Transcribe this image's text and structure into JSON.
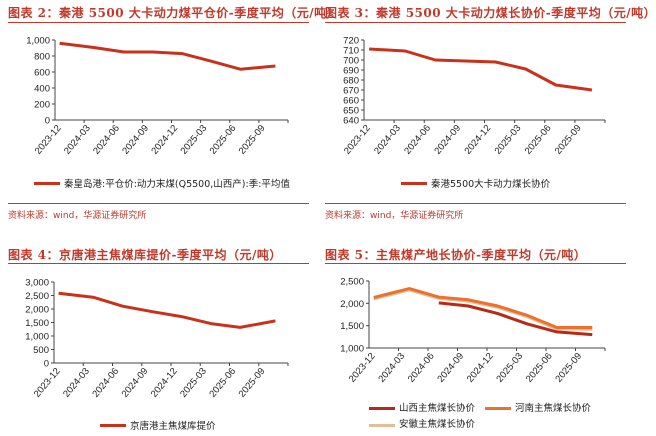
{
  "source_text": "资料来源：wind，华源证券研究所",
  "chart_data": [
    {
      "type": "line",
      "title": "图表 2：秦港 5500 大卡动力煤平仓价-季度平均（元/吨）",
      "categories": [
        "2023-12",
        "2024-03",
        "2024-06",
        "2024-09",
        "2024-12",
        "2025-03",
        "2025-06",
        "2025-09"
      ],
      "yticks": [
        "0",
        "200",
        "400",
        "600",
        "800",
        "1,000"
      ],
      "ylim": [
        0,
        1000
      ],
      "legend_position": "bottom",
      "series": [
        {
          "name": "秦皇岛港:平仓价:动力末煤(Q5500,山西产):季:平均值",
          "color": "#c8321c",
          "values": [
            960,
            905,
            850,
            850,
            830,
            735,
            635,
            675
          ]
        }
      ]
    },
    {
      "type": "line",
      "title": "图表 3：秦港 5500 大卡动力煤长协价-季度平均（元/吨）",
      "categories": [
        "2023-12",
        "2024-03",
        "2024-06",
        "2024-09",
        "2024-12",
        "2025-03",
        "2025-06",
        "2025-09"
      ],
      "yticks": [
        "640",
        "650",
        "660",
        "670",
        "680",
        "690",
        "700",
        "710",
        "720"
      ],
      "ylim": [
        640,
        720
      ],
      "legend_position": "bottom",
      "series": [
        {
          "name": "秦港5500大卡动力煤长协价",
          "color": "#c8321c",
          "values": [
            711,
            709,
            700,
            699,
            698,
            691,
            675,
            670
          ]
        }
      ]
    },
    {
      "type": "line",
      "title": "图表 4：京唐港主焦煤库提价-季度平均（元/吨）",
      "categories": [
        "2023-12",
        "2024-03",
        "2024-06",
        "2024-09",
        "2024-12",
        "2025-03",
        "2025-06",
        "2025-09"
      ],
      "yticks": [
        "0",
        "500",
        "1,000",
        "1,500",
        "2,000",
        "2,500",
        "3,000"
      ],
      "ylim": [
        0,
        3000
      ],
      "legend_position": "bottom",
      "series": [
        {
          "name": "京唐港主焦煤库提价",
          "color": "#c8321c",
          "values": [
            2580,
            2430,
            2100,
            1900,
            1720,
            1460,
            1320,
            1560
          ]
        }
      ]
    },
    {
      "type": "line",
      "title": "图表 5：主焦煤产地长协价-季度平均（元/吨）",
      "categories": [
        "2023-12",
        "2024-03",
        "2024-06",
        "2024-09",
        "2024-12",
        "2025-03",
        "2025-06",
        "2025-09"
      ],
      "yticks": [
        "1,000",
        "1,500",
        "2,000",
        "2,500"
      ],
      "ylim": [
        1000,
        2500
      ],
      "legend_position": "bottom",
      "series": [
        {
          "name": "安徽主焦煤长协价",
          "color": "#e3bd98",
          "values": [
            2100,
            2300,
            2110,
            2050,
            1910,
            1700,
            1430,
            1420
          ]
        },
        {
          "name": "河南主焦煤长协价",
          "color": "#e8722e",
          "values": [
            2130,
            2330,
            2140,
            2080,
            1940,
            1730,
            1460,
            1460
          ]
        },
        {
          "name": "山西主焦煤长协价",
          "color": "#b52a1b",
          "values": [
            null,
            null,
            2010,
            1940,
            1770,
            1540,
            1360,
            1300
          ]
        }
      ],
      "legend_order": [
        2,
        1,
        0
      ]
    }
  ]
}
